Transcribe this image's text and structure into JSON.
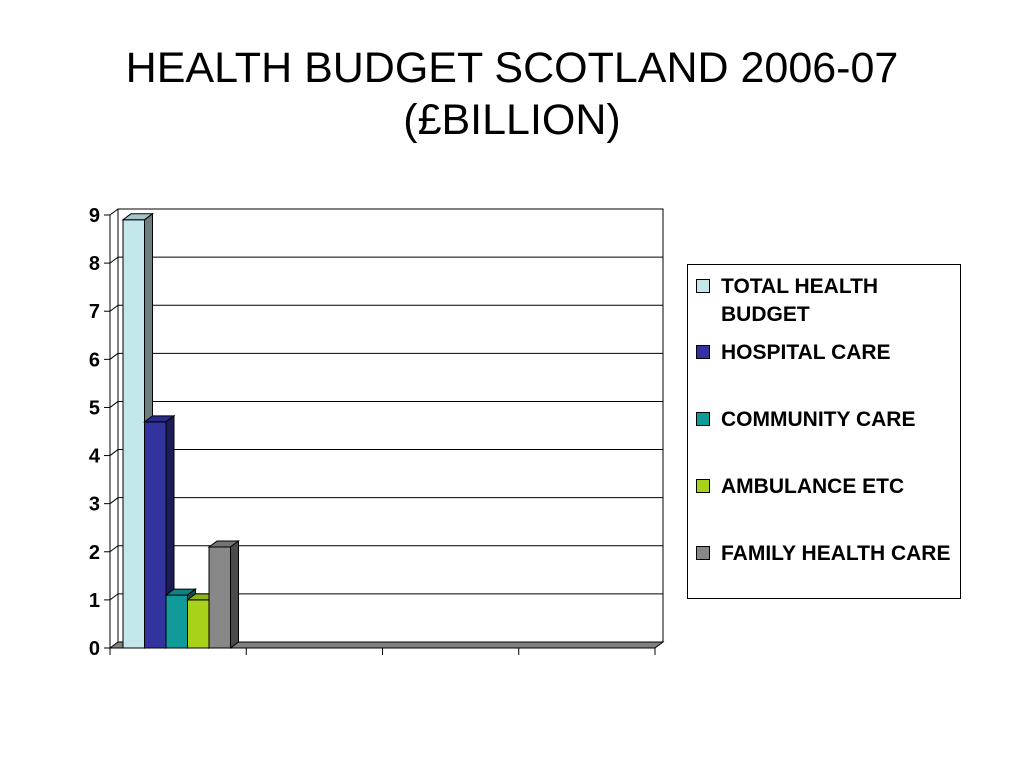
{
  "title": {
    "line1": "HEALTH BUDGET SCOTLAND 2006-07",
    "line2": "(£BILLION)"
  },
  "chart_data": {
    "type": "bar",
    "title": "HEALTH BUDGET SCOTLAND 2006-07 (£BILLION)",
    "xlabel": "",
    "ylabel": "",
    "ylim": [
      0,
      9
    ],
    "yticks": [
      "0",
      "1",
      "2",
      "3",
      "4",
      "5",
      "6",
      "7",
      "8",
      "9"
    ],
    "categories": [
      "",
      "",
      "",
      ""
    ],
    "grid": true,
    "legend_position": "right",
    "series": [
      {
        "name": "TOTAL HEALTH BUDGET",
        "color": "#c2e6ea",
        "values": [
          8.9,
          0,
          0,
          0
        ]
      },
      {
        "name": "HOSPITAL CARE",
        "color": "#3333a0",
        "values": [
          4.7,
          0,
          0,
          0
        ]
      },
      {
        "name": "COMMUNITY CARE",
        "color": "#119a9a",
        "values": [
          1.1,
          0,
          0,
          0
        ]
      },
      {
        "name": "AMBULANCE ETC",
        "color": "#a8d21a",
        "values": [
          1.0,
          0,
          0,
          0
        ]
      },
      {
        "name": "FAMILY HEALTH CARE",
        "color": "#888888",
        "values": [
          2.1,
          0,
          0,
          0
        ]
      }
    ]
  }
}
